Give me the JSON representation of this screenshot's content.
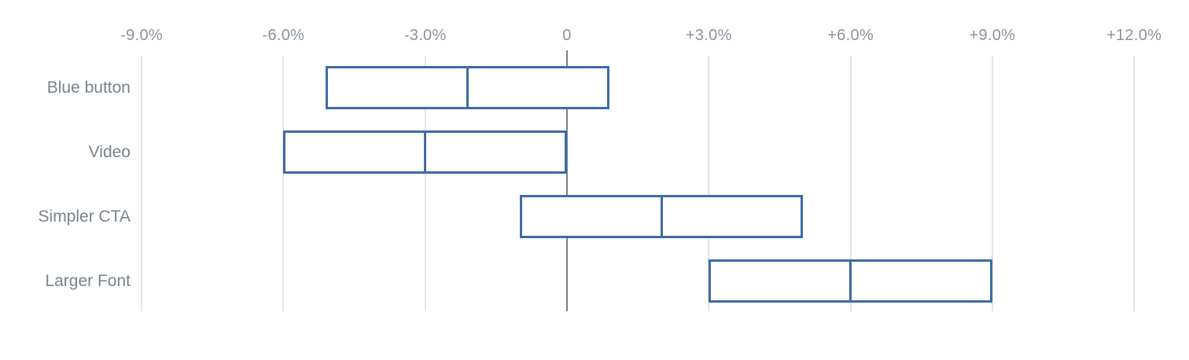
{
  "chart_data": {
    "type": "range-bar",
    "title": "",
    "description": "Horizontal confidence-interval ranges for four A/B test variants, each box split by a center line at its midpoint lift value",
    "categories": [
      "Blue button",
      "Video",
      "Simpler CTA",
      "Larger Font"
    ],
    "series": [
      {
        "name": "Blue button",
        "low": -5.1,
        "mid": -2.1,
        "high": 0.9
      },
      {
        "name": "Video",
        "low": -6.0,
        "mid": -3.0,
        "high": 0.0
      },
      {
        "name": "Simpler CTA",
        "low": -1.0,
        "mid": 2.0,
        "high": 5.0
      },
      {
        "name": "Larger Font",
        "low": 3.0,
        "mid": 6.0,
        "high": 9.0
      }
    ],
    "x_axis": {
      "min": -9,
      "max": 12,
      "step": 3,
      "ticks": [
        -9,
        -6,
        -3,
        0,
        3,
        6,
        9,
        12
      ],
      "tick_labels": [
        "-9.0%",
        "-6.0%",
        "-3.0%",
        "0",
        "+3.0%",
        "+6.0%",
        "+9.0%",
        "+12.0%"
      ]
    },
    "unit": "%",
    "grid": true,
    "legend": false,
    "colors": {
      "bar_border": "#3d6ba6",
      "bar_fill": "#ffffff",
      "gridline": "#e4e4e6",
      "zero_line": "#76808e",
      "tick_label": "#8b93a1",
      "category_label": "#78828f",
      "background": "#ffffff"
    }
  }
}
